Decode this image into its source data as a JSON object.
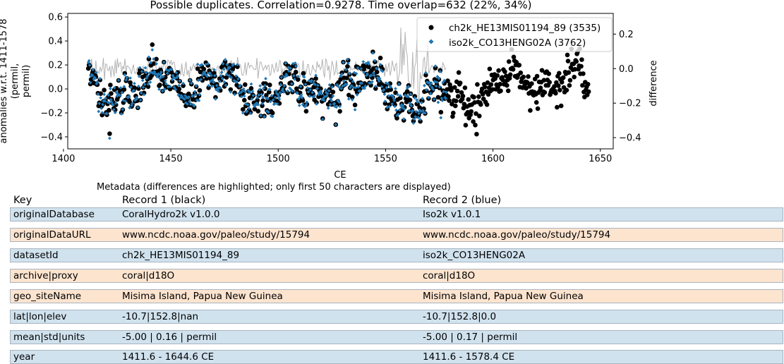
{
  "chart_data": {
    "type": "scatter",
    "title": "Possible duplicates. Correlation=0.9278. Time overlap=632 (22%, 34%)",
    "xlabel": "CE",
    "ylabel": "anomalies w.r.t. 1411-1578 (permil, permil)",
    "ylabel_lines": [
      "anomalies w.r.t. 1411-1578",
      "(permil,",
      "permil)"
    ],
    "y2label": "difference",
    "xlim": [
      1402,
      1656
    ],
    "ylim": [
      -0.5,
      0.63
    ],
    "y2lim": [
      -0.465,
      0.32
    ],
    "xticks": [
      1400,
      1450,
      1500,
      1550,
      1600,
      1650
    ],
    "yticks": [
      0.6,
      0.4,
      0.2,
      0.0,
      -0.2,
      -0.4
    ],
    "yticklabels": [
      "0.6",
      "0.4",
      "0.2",
      "0.0",
      "−0.2",
      "−0.4"
    ],
    "y2ticks": [
      0.2,
      0.0,
      -0.2,
      -0.4
    ],
    "y2ticklabels": [
      "0.2",
      "0.0",
      "−0.2",
      "−0.4"
    ],
    "legend_position": "top-right",
    "series": [
      {
        "name": "ch2k_HE13MIS01194_89 (3535)",
        "color": "#000000",
        "marker": "circle",
        "x_range": [
          1411.6,
          1644.6
        ]
      },
      {
        "name": "iso2k_CO13HENG02A (3762)",
        "color": "#1f77b4",
        "marker": "diamond",
        "x_range": [
          1411.6,
          1578.4
        ]
      },
      {
        "name": "difference",
        "color": "#808080",
        "marker": "line",
        "x_range": [
          1411.6,
          1578.4
        ]
      }
    ]
  },
  "metadata": {
    "caption": "Metadata (differences are highlighted; only first 50 characters are displayed)",
    "headers": [
      "Key",
      "Record 1 (black)",
      "Record 2 (blue)"
    ],
    "highlight_color": "#fde4cf",
    "plain_color": "#d0e2ee",
    "rows": [
      {
        "key": "originalDatabase",
        "r1": "CoralHydro2k v1.0.0",
        "r2": "Iso2k v1.0.1",
        "diff": false
      },
      {
        "key": "originalDataURL",
        "r1": "www.ncdc.noaa.gov/paleo/study/15794",
        "r2": "www.ncdc.noaa.gov/paleo/study/15794",
        "diff": true
      },
      {
        "key": "datasetId",
        "r1": "ch2k_HE13MIS01194_89",
        "r2": "iso2k_CO13HENG02A",
        "diff": false
      },
      {
        "key": "archive|proxy",
        "r1": "coral|d18O",
        "r2": "coral|d18O",
        "diff": true
      },
      {
        "key": "geo_siteName",
        "r1": "Misima Island, Papua New Guinea",
        "r2": "Misima Island, Papua New Guinea",
        "diff": true
      },
      {
        "key": "lat|lon|elev",
        "r1": "-10.7|152.8|nan",
        "r2": "-10.7|152.8|0.0",
        "diff": false
      },
      {
        "key": "mean|std|units",
        "r1": "-5.00 | 0.16 | permil",
        "r2": "-5.00 | 0.17 | permil",
        "diff": false
      },
      {
        "key": "year",
        "r1": "1411.6 - 1644.6 CE",
        "r2": "1411.6 - 1578.4 CE",
        "diff": false
      }
    ]
  }
}
